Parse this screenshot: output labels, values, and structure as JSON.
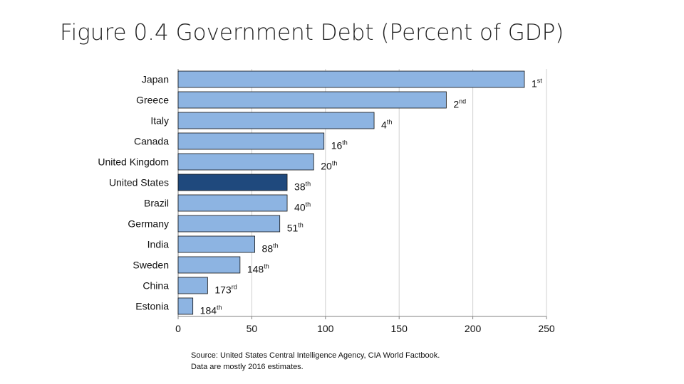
{
  "slide": {
    "title": "Figure 0.4 Government Debt (Percent of GDP)",
    "source_line1": "Source: United States Central Intelligence Agency, CIA World Factbook.",
    "source_line2": "Data are mostly 2016 estimates."
  },
  "colors": {
    "bar": "#8db4e2",
    "highlight": "#1f497d",
    "grid": "#d0d0d0",
    "axis": "#808080",
    "text": "#111111"
  },
  "chart_data": {
    "type": "bar",
    "orientation": "horizontal",
    "title": "",
    "xlabel": "",
    "ylabel": "",
    "xlim": [
      0,
      250
    ],
    "xticks": [
      0,
      50,
      100,
      150,
      200,
      250
    ],
    "grid": true,
    "highlight_category": "United States",
    "categories": [
      "Japan",
      "Greece",
      "Italy",
      "Canada",
      "United Kingdom",
      "United States",
      "Brazil",
      "Germany",
      "India",
      "Sweden",
      "China",
      "Estonia"
    ],
    "values": [
      235,
      182,
      133,
      99,
      92,
      74,
      74,
      69,
      52,
      42,
      20,
      10
    ],
    "rank_labels": [
      {
        "num": "1",
        "sup": "st"
      },
      {
        "num": "2",
        "sup": "nd"
      },
      {
        "num": "4",
        "sup": "th"
      },
      {
        "num": "16",
        "sup": "th"
      },
      {
        "num": "20",
        "sup": "th"
      },
      {
        "num": "38",
        "sup": "th"
      },
      {
        "num": "40",
        "sup": "th"
      },
      {
        "num": "51",
        "sup": "th"
      },
      {
        "num": "88",
        "sup": "th"
      },
      {
        "num": "148",
        "sup": "th"
      },
      {
        "num": "173",
        "sup": "rd"
      },
      {
        "num": "184",
        "sup": "th"
      }
    ]
  }
}
